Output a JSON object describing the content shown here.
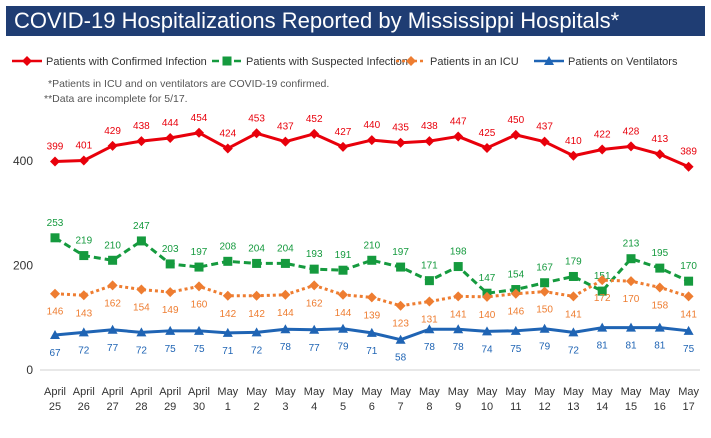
{
  "title": "COVID-19 Hospitalizations Reported by Mississippi Hospitals*",
  "notes": [
    "*Patients in ICU and on ventilators are COVID-19 confirmed.",
    "**Data are incomplete for 5/17."
  ],
  "chart_data": {
    "type": "line",
    "title": "COVID-19 Hospitalizations Reported by Mississippi Hospitals*",
    "xlabel": "",
    "ylabel": "",
    "ylim": [
      0,
      500
    ],
    "yticks": [
      0,
      200,
      400
    ],
    "grid": false,
    "legend_position": "top",
    "categories": [
      [
        "April",
        "25"
      ],
      [
        "April",
        "26"
      ],
      [
        "April",
        "27"
      ],
      [
        "April",
        "28"
      ],
      [
        "April",
        "29"
      ],
      [
        "April",
        "30"
      ],
      [
        "May",
        "1"
      ],
      [
        "May",
        "2"
      ],
      [
        "May",
        "3"
      ],
      [
        "May",
        "4"
      ],
      [
        "May",
        "5"
      ],
      [
        "May",
        "6"
      ],
      [
        "May",
        "7"
      ],
      [
        "May",
        "8"
      ],
      [
        "May",
        "9"
      ],
      [
        "May",
        "10"
      ],
      [
        "May",
        "11"
      ],
      [
        "May",
        "12"
      ],
      [
        "May",
        "13"
      ],
      [
        "May",
        "14"
      ],
      [
        "May",
        "15"
      ],
      [
        "May",
        "16"
      ],
      [
        "May",
        "17"
      ]
    ],
    "series": [
      {
        "name": "Patients with Confirmed Infection",
        "color": "#e8000b",
        "line": "solid",
        "marker": "diamond",
        "label_pos": "above",
        "values": [
          399,
          401,
          429,
          438,
          444,
          454,
          424,
          453,
          437,
          452,
          427,
          440,
          435,
          438,
          447,
          425,
          450,
          437,
          410,
          422,
          428,
          413,
          389
        ]
      },
      {
        "name": "Patients with Suspected Infection",
        "color": "#159a3e",
        "line": "dashed",
        "marker": "square",
        "label_pos": "above",
        "values": [
          253,
          219,
          210,
          247,
          203,
          197,
          208,
          204,
          204,
          193,
          191,
          210,
          197,
          171,
          198,
          147,
          154,
          167,
          179,
          151,
          213,
          195,
          170
        ]
      },
      {
        "name": "Patients in an ICU",
        "color": "#ee7d31",
        "line": "dotted",
        "marker": "diamond",
        "label_pos": "below",
        "values": [
          146,
          143,
          162,
          154,
          149,
          160,
          142,
          142,
          144,
          162,
          144,
          139,
          123,
          131,
          141,
          140,
          146,
          150,
          141,
          172,
          170,
          158,
          141
        ]
      },
      {
        "name": "Patients on Ventilators",
        "color": "#1f64b4",
        "line": "solid",
        "marker": "triangle",
        "label_pos": "below",
        "values": [
          67,
          72,
          77,
          72,
          75,
          75,
          71,
          72,
          78,
          77,
          79,
          71,
          58,
          78,
          78,
          74,
          75,
          79,
          72,
          81,
          81,
          81,
          75
        ]
      }
    ]
  }
}
